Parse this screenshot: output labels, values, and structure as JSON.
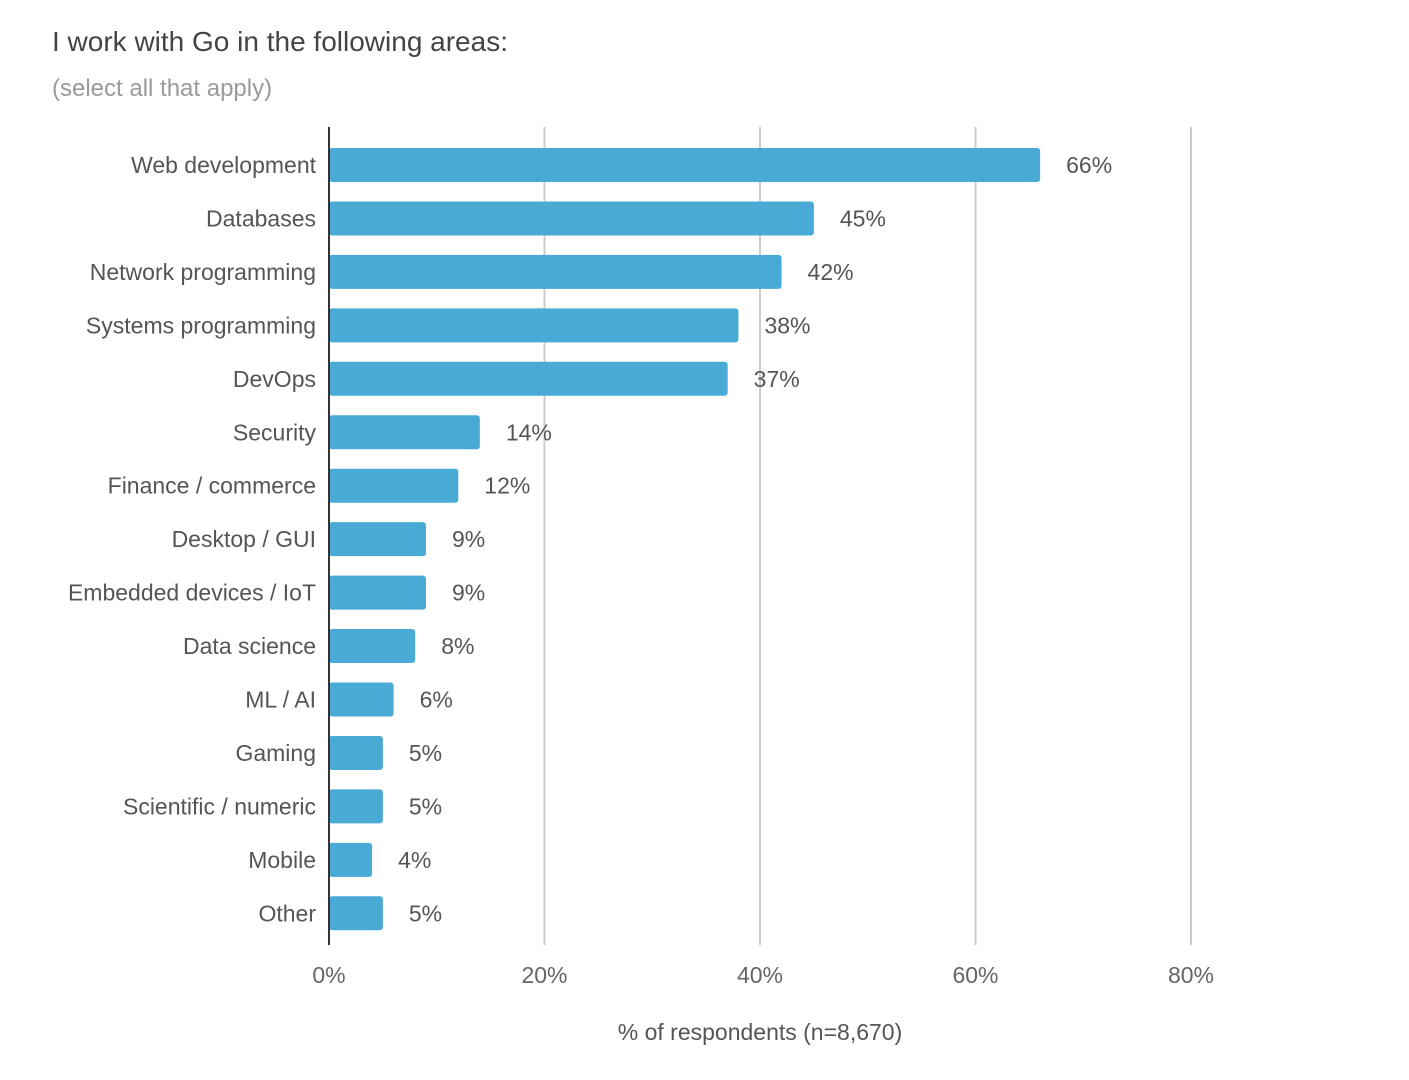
{
  "chart_data": {
    "type": "bar",
    "orientation": "horizontal",
    "title": "I work with Go in the following areas:",
    "subtitle": "(select all that apply)",
    "categories": [
      "Web development",
      "Databases",
      "Network programming",
      "Systems programming",
      "DevOps",
      "Security",
      "Finance / commerce",
      "Desktop / GUI",
      "Embedded devices / IoT",
      "Data science",
      "ML / AI",
      "Gaming",
      "Scientific / numeric",
      "Mobile",
      "Other"
    ],
    "values": [
      66,
      45,
      42,
      38,
      37,
      14,
      12,
      9,
      9,
      8,
      6,
      5,
      5,
      4,
      5
    ],
    "value_labels": [
      "66%",
      "45%",
      "42%",
      "38%",
      "37%",
      "14%",
      "12%",
      "9%",
      "9%",
      "8%",
      "6%",
      "5%",
      "5%",
      "4%",
      "5%"
    ],
    "xlabel": "% of respondents (n=8,670)",
    "ylabel": "",
    "xlim": [
      0,
      80
    ],
    "xticks": [
      0,
      20,
      40,
      60,
      80
    ],
    "xtick_labels": [
      "0%",
      "20%",
      "40%",
      "60%",
      "80%"
    ],
    "grid": "vertical",
    "bar_color": "#4aaad6",
    "grid_color": "#cccccc",
    "axis_color": "#333333"
  }
}
